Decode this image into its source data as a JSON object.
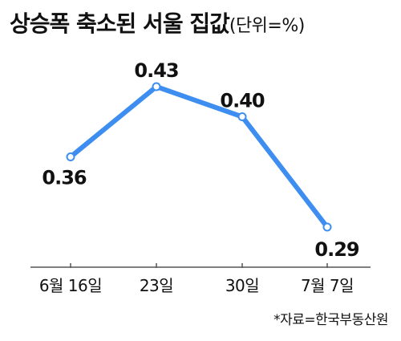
{
  "title": "상승폭 축소된 서울 집값",
  "unit": "(단위=%)",
  "source": "*자료=한국부동산원",
  "colors": {
    "line": "#3d8ef0",
    "marker_fill": "#ffffff",
    "text": "#111111",
    "axis": "#555555"
  },
  "chart_data": {
    "type": "line",
    "title": "상승폭 축소된 서울 집값",
    "unit": "%",
    "categories": [
      "6월 16일",
      "23일",
      "30일",
      "7월 7일"
    ],
    "values": [
      0.36,
      0.43,
      0.4,
      0.29
    ],
    "data_labels": [
      "0.36",
      "0.43",
      "0.40",
      "0.29"
    ],
    "xlabel": "",
    "ylabel": "",
    "grid": false,
    "legend": "none"
  }
}
